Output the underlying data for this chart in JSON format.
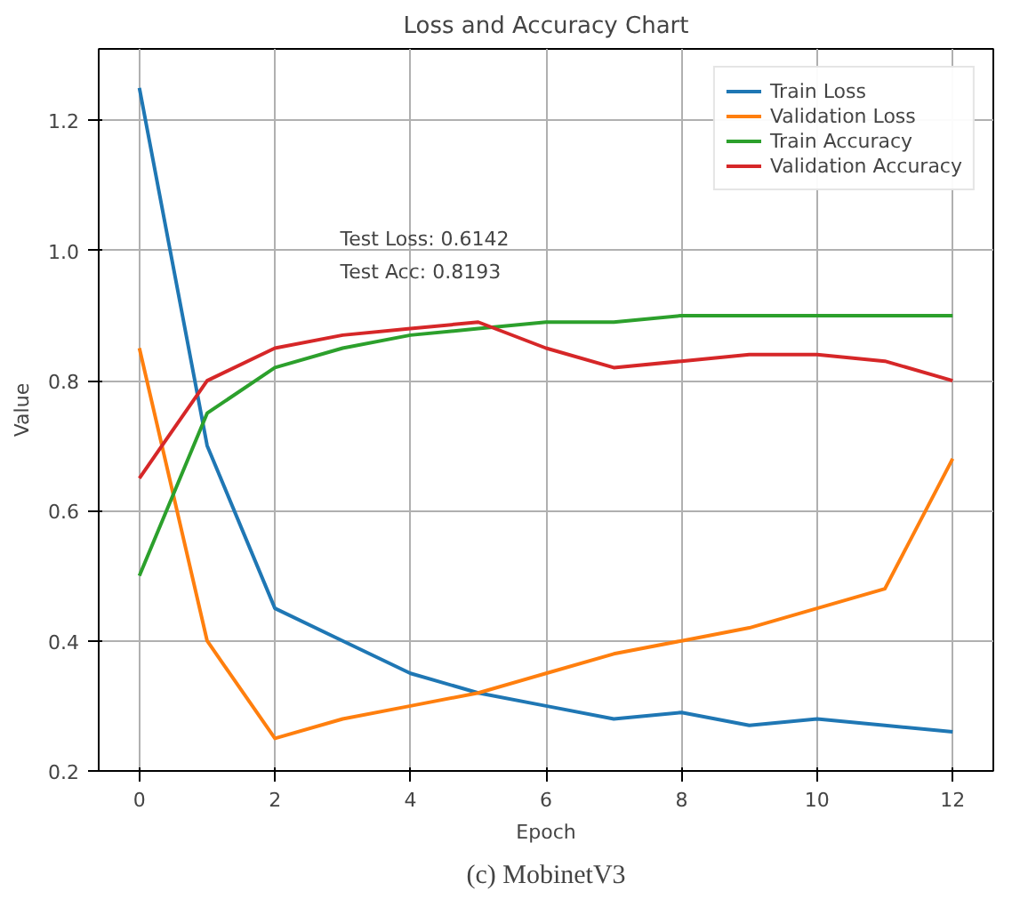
{
  "chart_data": {
    "type": "line",
    "title": "Loss and Accuracy Chart",
    "xlabel": "Epoch",
    "ylabel": "Value",
    "x": [
      0,
      1,
      2,
      3,
      4,
      5,
      6,
      7,
      8,
      9,
      10,
      11,
      12
    ],
    "series": [
      {
        "name": "Train Loss",
        "color": "#1f77b4",
        "values": [
          1.25,
          0.7,
          0.45,
          0.4,
          0.35,
          0.32,
          0.3,
          0.28,
          0.29,
          0.27,
          0.28,
          0.27,
          0.26
        ]
      },
      {
        "name": "Validation Loss",
        "color": "#ff7f0e",
        "values": [
          0.85,
          0.4,
          0.25,
          0.28,
          0.3,
          0.32,
          0.35,
          0.38,
          0.4,
          0.42,
          0.45,
          0.48,
          0.68
        ]
      },
      {
        "name": "Train Accuracy",
        "color": "#2ca02c",
        "values": [
          0.5,
          0.75,
          0.82,
          0.85,
          0.87,
          0.88,
          0.89,
          0.89,
          0.9,
          0.9,
          0.9,
          0.9,
          0.9
        ]
      },
      {
        "name": "Validation Accuracy",
        "color": "#d62728",
        "values": [
          0.65,
          0.8,
          0.85,
          0.87,
          0.88,
          0.89,
          0.85,
          0.82,
          0.83,
          0.84,
          0.84,
          0.83,
          0.8
        ]
      }
    ],
    "xlim": [
      -0.6,
      12.6
    ],
    "ylim": [
      0.2,
      1.31
    ],
    "xticks": [
      0,
      2,
      4,
      6,
      8,
      10,
      12
    ],
    "yticks": [
      0.2,
      0.4,
      0.6,
      0.8,
      {
        "value": 1,
        "label": "1.0"
      },
      1.2
    ],
    "annotations": [
      "Test Loss: 0.6142",
      "Test Acc: 0.8193",
      "(c) MobinetV3"
    ],
    "grid": true,
    "legend": "top right",
    "marker": "none",
    "line_style": "solid"
  }
}
